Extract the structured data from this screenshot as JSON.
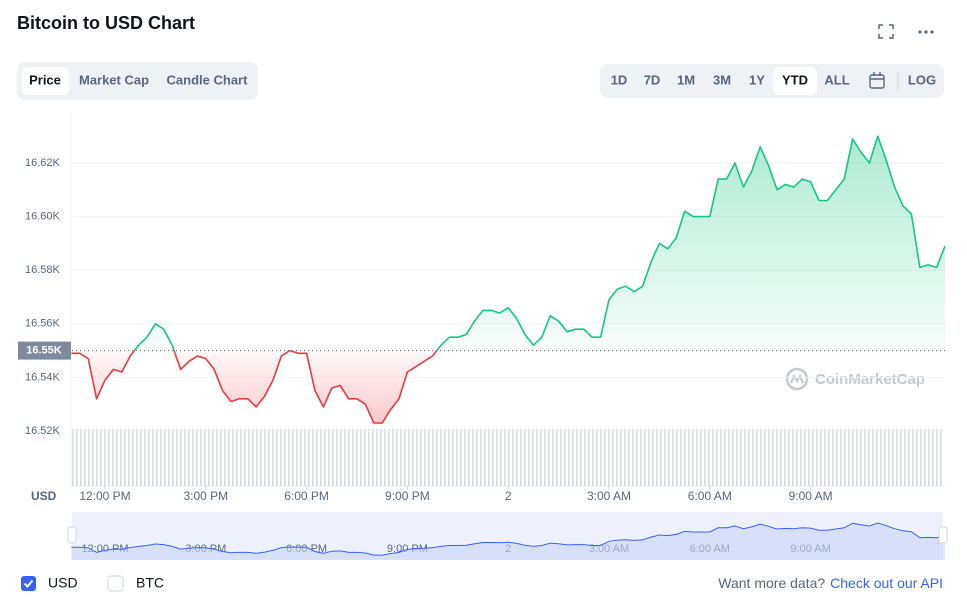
{
  "header": {
    "title": "Bitcoin to USD Chart"
  },
  "tabs": [
    "Price",
    "Market Cap",
    "Candle Chart"
  ],
  "ranges": [
    "1D",
    "7D",
    "1M",
    "3M",
    "1Y",
    "YTD",
    "ALL"
  ],
  "log": "LOG",
  "currencies": [
    "USD",
    "BTC"
  ],
  "footer": {
    "text": "Want more data?",
    "link": "Check out our API"
  },
  "chart_data": {
    "type": "line",
    "unit_label": "USD",
    "watermark": "CoinMarketCap",
    "up_color": "#16c784",
    "down_color": "#ea3943",
    "reference": {
      "value": 16550,
      "label": "16.55K"
    },
    "xlim": [
      11,
      37
    ],
    "ylim": [
      16520,
      16640
    ],
    "grid": true,
    "xticks": [
      {
        "value": 12,
        "label": "12:00 PM"
      },
      {
        "value": 15,
        "label": "3:00 PM"
      },
      {
        "value": 18,
        "label": "6:00 PM"
      },
      {
        "value": 21,
        "label": "9:00 PM"
      },
      {
        "value": 24,
        "label": "2"
      },
      {
        "value": 27,
        "label": "3:00 AM"
      },
      {
        "value": 30,
        "label": "6:00 AM"
      },
      {
        "value": 33,
        "label": "9:00 AM"
      }
    ],
    "yticks": [
      {
        "value": 16520,
        "label": "16.52K"
      },
      {
        "value": 16540,
        "label": "16.54K"
      },
      {
        "value": 16560,
        "label": "16.56K"
      },
      {
        "value": 16580,
        "label": "16.58K"
      },
      {
        "value": 16600,
        "label": "16.60K"
      },
      {
        "value": 16620,
        "label": "16.62K"
      }
    ],
    "x": [
      11,
      11.25,
      11.5,
      11.75,
      12,
      12.25,
      12.5,
      12.75,
      13,
      13.25,
      13.5,
      13.75,
      14,
      14.25,
      14.5,
      14.75,
      15,
      15.25,
      15.5,
      15.75,
      16,
      16.25,
      16.5,
      16.75,
      17,
      17.25,
      17.5,
      17.75,
      18,
      18.25,
      18.5,
      18.75,
      19,
      19.25,
      19.5,
      19.75,
      20,
      20.25,
      20.5,
      20.75,
      21,
      21.25,
      21.5,
      21.75,
      22,
      22.25,
      22.5,
      22.75,
      23,
      23.25,
      23.5,
      23.75,
      24,
      24.25,
      24.5,
      24.75,
      25,
      25.25,
      25.5,
      25.75,
      26,
      26.25,
      26.5,
      26.75,
      27,
      27.25,
      27.5,
      27.75,
      28,
      28.25,
      28.5,
      28.75,
      29,
      29.25,
      29.5,
      29.75,
      30,
      30.25,
      30.5,
      30.75,
      31,
      31.25,
      31.5,
      31.75,
      32,
      32.25,
      32.5,
      32.75,
      33,
      33.25,
      33.5,
      33.75,
      34,
      34.25,
      34.5,
      34.75,
      35,
      35.25,
      35.5,
      35.75,
      36,
      36.25,
      36.5,
      36.75,
      37
    ],
    "values": [
      16549,
      16549,
      16547,
      16532,
      16539,
      16543,
      16542,
      16548,
      16552,
      16555,
      16560,
      16558,
      16552,
      16543,
      16546,
      16548,
      16547,
      16543,
      16535,
      16531,
      16532,
      16532,
      16529,
      16533,
      16539,
      16548,
      16550,
      16549,
      16549,
      16535,
      16529,
      16536,
      16537,
      16532,
      16532,
      16530,
      16523,
      16523,
      16528,
      16532,
      16542,
      16544,
      16546,
      16548,
      16552,
      16555,
      16555,
      16556,
      16561,
      16565,
      16565,
      16564,
      16566,
      16562,
      16556,
      16552,
      16555,
      16563,
      16561,
      16557,
      16558,
      16558,
      16555,
      16555,
      16569,
      16573,
      16574,
      16572,
      16574,
      16583,
      16590,
      16588,
      16592,
      16602,
      16600,
      16600,
      16600,
      16614,
      16614,
      16620,
      16611,
      16617,
      16626,
      16619,
      16610,
      16612,
      16611,
      16614,
      16613,
      16606,
      16606,
      16610,
      16614,
      16629,
      16624,
      16620,
      16630,
      16621,
      16611,
      16604,
      16601,
      16581,
      16582,
      16581,
      16589
    ]
  }
}
